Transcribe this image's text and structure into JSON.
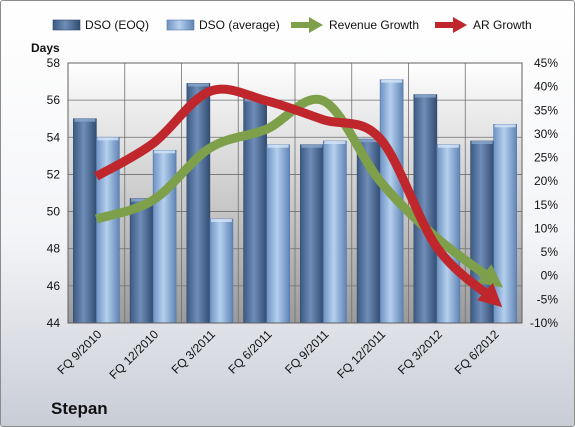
{
  "company": "Stepan",
  "chart_data": {
    "type": "bar",
    "categories": [
      "FQ 9/2010",
      "FQ 12/2010",
      "FQ 3/2011",
      "FQ 6/2011",
      "FQ 9/2011",
      "FQ 12/2011",
      "FQ 3/2012",
      "FQ 6/2012"
    ],
    "series": [
      {
        "name": "DSO (EOQ)",
        "type": "bar",
        "axis": "left",
        "color": "#4f6e9c",
        "values": [
          55.0,
          50.7,
          56.9,
          56.1,
          53.6,
          53.9,
          56.3,
          53.8
        ]
      },
      {
        "name": "DSO (average)",
        "type": "bar",
        "axis": "left",
        "color": "#8fb0d9",
        "values": [
          54.0,
          53.3,
          49.6,
          53.6,
          53.8,
          57.1,
          53.6,
          54.7
        ]
      },
      {
        "name": "Revenue Growth",
        "type": "line-arrow",
        "axis": "right",
        "color": "#7ea04a",
        "values": [
          12,
          16,
          27,
          31,
          37,
          20,
          8,
          -1
        ]
      },
      {
        "name": "AR Growth",
        "type": "line-arrow",
        "axis": "right",
        "color": "#c0272d",
        "values": [
          21,
          28,
          39,
          37,
          33,
          29,
          6,
          -5
        ]
      }
    ],
    "ylabel": "Days",
    "ylim": [
      44,
      58
    ],
    "yticks": [
      "44",
      "46",
      "48",
      "50",
      "52",
      "54",
      "56",
      "58"
    ],
    "y2lim": [
      -10,
      45
    ],
    "y2ticks": [
      "-10%",
      "-5%",
      "0%",
      "5%",
      "10%",
      "15%",
      "20%",
      "25%",
      "30%",
      "35%",
      "40%",
      "45%"
    ],
    "grid": true,
    "legend": "top"
  }
}
